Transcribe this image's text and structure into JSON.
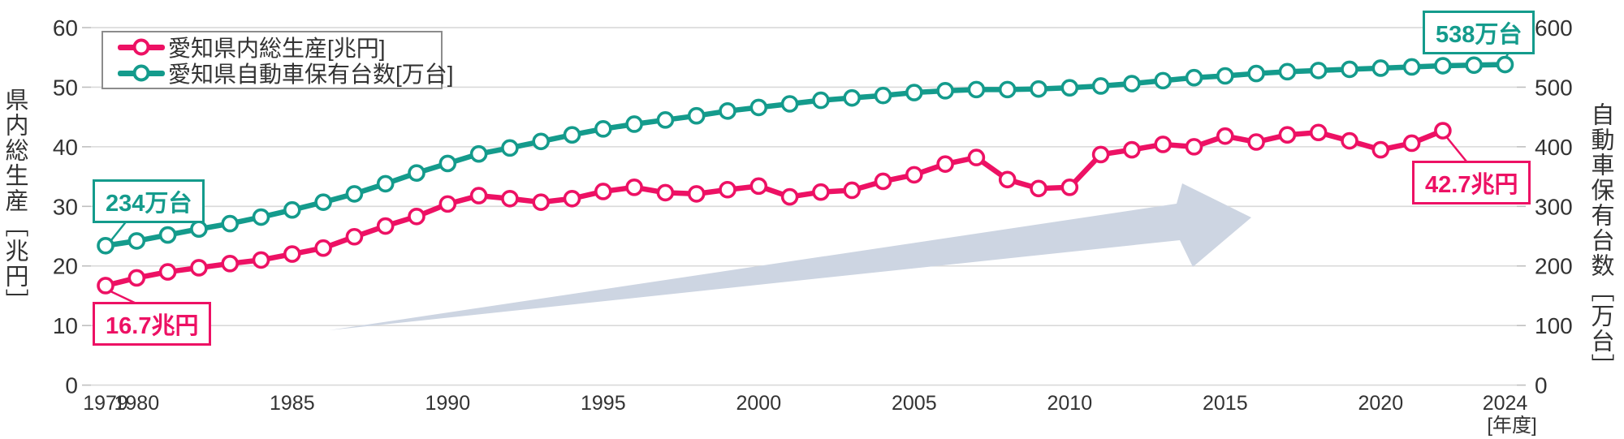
{
  "chart_data": {
    "type": "line",
    "x": [
      1979,
      1980,
      1981,
      1982,
      1983,
      1984,
      1985,
      1986,
      1987,
      1988,
      1989,
      1990,
      1991,
      1992,
      1993,
      1994,
      1995,
      1996,
      1997,
      1998,
      1999,
      2000,
      2001,
      2002,
      2003,
      2004,
      2005,
      2006,
      2007,
      2008,
      2009,
      2010,
      2011,
      2012,
      2013,
      2014,
      2015,
      2016,
      2017,
      2018,
      2019,
      2020,
      2021,
      2022,
      2023,
      2024
    ],
    "series": [
      {
        "name": "愛知県内総生産[兆円]",
        "axis": "left",
        "color": "#ED1164",
        "values": [
          16.7,
          18.0,
          19.0,
          19.7,
          20.4,
          21.0,
          22.0,
          23.0,
          24.9,
          26.7,
          28.3,
          30.4,
          31.8,
          31.3,
          30.7,
          31.3,
          32.5,
          33.2,
          32.3,
          32.1,
          32.8,
          33.4,
          31.6,
          32.4,
          32.7,
          34.2,
          35.3,
          37.1,
          38.2,
          34.5,
          33.0,
          33.2,
          38.7,
          39.5,
          40.4,
          40.0,
          41.8,
          40.8,
          42.0,
          42.4,
          41.0,
          39.5,
          40.6,
          42.7,
          null,
          null
        ]
      },
      {
        "name": "愛知県自動車保有台数[万台]",
        "axis": "right",
        "color": "#149B8C",
        "values": [
          234,
          242,
          252,
          262,
          271,
          282,
          294,
          307,
          321,
          338,
          356,
          372,
          388,
          398,
          409,
          420,
          430,
          438,
          445,
          452,
          460,
          466,
          472,
          478,
          482,
          486,
          491,
          494,
          496,
          496,
          497,
          499,
          502,
          506,
          511,
          516,
          519,
          523,
          526,
          528,
          530,
          532,
          534,
          536,
          537,
          538
        ]
      }
    ],
    "left_axis": {
      "title": "県内総生産［兆円］",
      "ticks": [
        0,
        10,
        20,
        30,
        40,
        50,
        60
      ],
      "range": [
        0,
        60
      ]
    },
    "right_axis": {
      "title": "自動車保有台数［万台］",
      "ticks": [
        0,
        100,
        200,
        300,
        400,
        500,
        600
      ],
      "range": [
        0,
        600
      ]
    },
    "x_axis": {
      "tick_years": [
        1979,
        1980,
        1985,
        1990,
        1995,
        2000,
        2005,
        2010,
        2015,
        2020,
        2024
      ],
      "tick_labels": [
        "1979",
        "1980",
        "1985",
        "1990",
        "1995",
        "2000",
        "2005",
        "2010",
        "2015",
        "2020",
        "2024"
      ],
      "unit_label": "[年度]"
    },
    "grid": true,
    "legend_position": "top-left"
  },
  "legend": {
    "items": [
      {
        "label": "愛知県内総生産[兆円]",
        "color": "#ED1164"
      },
      {
        "label": "愛知県自動車保有台数[万台]",
        "color": "#149B8C"
      }
    ]
  },
  "annotations": {
    "vehicles_start": {
      "label": "234万台",
      "color": "#149B8C"
    },
    "vehicles_end": {
      "label": "538万台",
      "color": "#149B8C"
    },
    "gdp_start": {
      "label": "16.7兆円",
      "color": "#ED1164"
    },
    "gdp_end": {
      "label": "42.7兆円",
      "color": "#ED1164"
    }
  },
  "colors": {
    "gdp": "#ED1164",
    "vehicles": "#149B8C",
    "gridline": "#d9d9d9",
    "tick": "#bfbfbf",
    "text": "#333333",
    "arrow": "#CDD5E2",
    "background": "#ffffff"
  }
}
